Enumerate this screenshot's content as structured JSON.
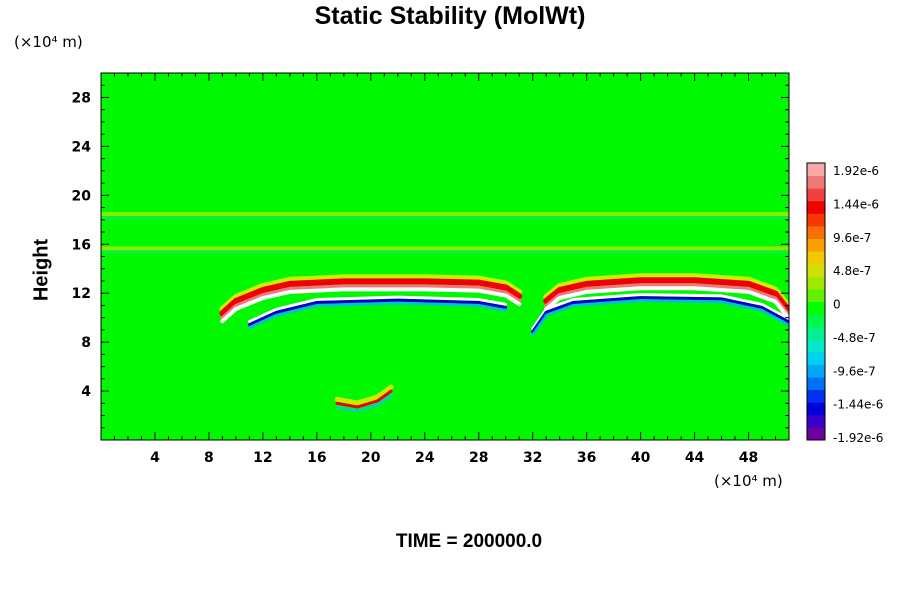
{
  "chart_data": {
    "type": "heatmap",
    "title": "Static Stability (MolWt)",
    "xlabel": "",
    "ylabel": "Height",
    "x_unit": "(×10⁴ m)",
    "y_unit": "(×10⁴ m)",
    "xlim": [
      0,
      51
    ],
    "ylim": [
      0,
      30
    ],
    "x_ticks": [
      4,
      8,
      12,
      16,
      20,
      24,
      28,
      32,
      36,
      40,
      44,
      48
    ],
    "y_ticks": [
      4,
      8,
      12,
      16,
      20,
      24,
      28
    ],
    "colorbar": {
      "min": -1.92e-06,
      "max": 1.92e-06,
      "labels": [
        "1.92e-6",
        "1.44e-6",
        "9.6e-7",
        "4.8e-7",
        "0",
        "-4.8e-7",
        "-9.6e-7",
        "-1.44e-6",
        "-1.92e-6"
      ],
      "colors": [
        "#6e00a0",
        "#3a00c8",
        "#0000d8",
        "#0030f0",
        "#0070f8",
        "#00a8f8",
        "#00d0f0",
        "#00e8c8",
        "#00f090",
        "#00f848",
        "#00ff00",
        "#60f000",
        "#a0e800",
        "#d0e000",
        "#f0c800",
        "#f8a000",
        "#f87000",
        "#f83800",
        "#f00000",
        "#f04040",
        "#f07878",
        "#f8a8a8"
      ]
    },
    "features": [
      {
        "name": "upper-positive-band-left",
        "x": [
          9,
          10,
          12,
          14,
          18,
          24,
          28,
          30,
          31
        ],
        "y": [
          10.2,
          11.2,
          12.1,
          12.6,
          12.8,
          12.8,
          12.7,
          12.3,
          11.6
        ]
      },
      {
        "name": "upper-positive-band-right",
        "x": [
          33,
          34,
          36,
          40,
          44,
          48,
          50,
          51
        ],
        "y": [
          11.2,
          12.1,
          12.6,
          12.9,
          12.9,
          12.6,
          11.8,
          10.4
        ]
      },
      {
        "name": "lower-negative-band-left",
        "x": [
          11,
          13,
          16,
          22,
          28,
          30
        ],
        "y": [
          9.6,
          10.6,
          11.4,
          11.6,
          11.4,
          11.0
        ]
      },
      {
        "name": "lower-negative-band-right",
        "x": [
          32,
          33,
          35,
          40,
          46,
          49,
          51
        ],
        "y": [
          9.0,
          10.6,
          11.4,
          11.8,
          11.7,
          11.0,
          9.8
        ]
      },
      {
        "name": "stable-layer-15",
        "x": [
          0,
          51
        ],
        "y": [
          15.5,
          15.5
        ]
      },
      {
        "name": "stable-layer-18",
        "x": [
          0,
          51
        ],
        "y": [
          18.3,
          18.3
        ]
      },
      {
        "name": "lower-wave-feature",
        "x": [
          17.5,
          19,
          20.5,
          21.5
        ],
        "y": [
          3.0,
          2.7,
          3.2,
          4.0
        ]
      }
    ]
  },
  "footer": {
    "time_label": "TIME = 200000.0"
  }
}
